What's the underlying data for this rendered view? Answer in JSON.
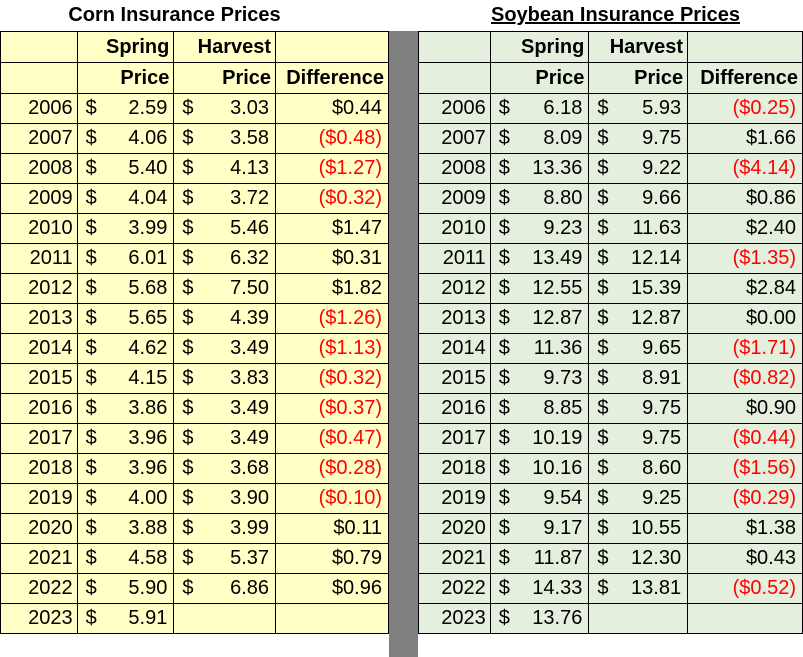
{
  "corn": {
    "title": "Corn Insurance Prices",
    "headers": {
      "spring_line1": "Spring",
      "spring_line2": "Price",
      "harvest_line1": "Harvest",
      "harvest_line2": "Price",
      "difference": "Difference"
    },
    "currency_symbol": "$",
    "rows": [
      {
        "year": "2006",
        "spring": "2.59",
        "harvest": "3.03",
        "difference": "$0.44",
        "negative": false
      },
      {
        "year": "2007",
        "spring": "4.06",
        "harvest": "3.58",
        "difference": "($0.48)",
        "negative": true
      },
      {
        "year": "2008",
        "spring": "5.40",
        "harvest": "4.13",
        "difference": "($1.27)",
        "negative": true
      },
      {
        "year": "2009",
        "spring": "4.04",
        "harvest": "3.72",
        "difference": "($0.32)",
        "negative": true
      },
      {
        "year": "2010",
        "spring": "3.99",
        "harvest": "5.46",
        "difference": "$1.47",
        "negative": false
      },
      {
        "year": "2011",
        "spring": "6.01",
        "harvest": "6.32",
        "difference": "$0.31",
        "negative": false
      },
      {
        "year": "2012",
        "spring": "5.68",
        "harvest": "7.50",
        "difference": "$1.82",
        "negative": false
      },
      {
        "year": "2013",
        "spring": "5.65",
        "harvest": "4.39",
        "difference": "($1.26)",
        "negative": true
      },
      {
        "year": "2014",
        "spring": "4.62",
        "harvest": "3.49",
        "difference": "($1.13)",
        "negative": true
      },
      {
        "year": "2015",
        "spring": "4.15",
        "harvest": "3.83",
        "difference": "($0.32)",
        "negative": true
      },
      {
        "year": "2016",
        "spring": "3.86",
        "harvest": "3.49",
        "difference": "($0.37)",
        "negative": true
      },
      {
        "year": "2017",
        "spring": "3.96",
        "harvest": "3.49",
        "difference": "($0.47)",
        "negative": true
      },
      {
        "year": "2018",
        "spring": "3.96",
        "harvest": "3.68",
        "difference": "($0.28)",
        "negative": true
      },
      {
        "year": "2019",
        "spring": "4.00",
        "harvest": "3.90",
        "difference": "($0.10)",
        "negative": true
      },
      {
        "year": "2020",
        "spring": "3.88",
        "harvest": "3.99",
        "difference": "$0.11",
        "negative": false
      },
      {
        "year": "2021",
        "spring": "4.58",
        "harvest": "5.37",
        "difference": "$0.79",
        "negative": false
      },
      {
        "year": "2022",
        "spring": "5.90",
        "harvest": "6.86",
        "difference": "$0.96",
        "negative": false
      },
      {
        "year": "2023",
        "spring": "5.91",
        "harvest": "",
        "difference": "",
        "negative": false
      }
    ]
  },
  "soybean": {
    "title": "Soybean Insurance Prices",
    "headers": {
      "spring_line1": "Spring",
      "spring_line2": "Price",
      "harvest_line1": "Harvest",
      "harvest_line2": "Price",
      "difference": "Difference"
    },
    "currency_symbol": "$",
    "rows": [
      {
        "year": "2006",
        "spring": "6.18",
        "harvest": "5.93",
        "difference": "($0.25)",
        "negative": true
      },
      {
        "year": "2007",
        "spring": "8.09",
        "harvest": "9.75",
        "difference": "$1.66",
        "negative": false
      },
      {
        "year": "2008",
        "spring": "13.36",
        "harvest": "9.22",
        "difference": "($4.14)",
        "negative": true
      },
      {
        "year": "2009",
        "spring": "8.80",
        "harvest": "9.66",
        "difference": "$0.86",
        "negative": false
      },
      {
        "year": "2010",
        "spring": "9.23",
        "harvest": "11.63",
        "difference": "$2.40",
        "negative": false
      },
      {
        "year": "2011",
        "spring": "13.49",
        "harvest": "12.14",
        "difference": "($1.35)",
        "negative": true
      },
      {
        "year": "2012",
        "spring": "12.55",
        "harvest": "15.39",
        "difference": "$2.84",
        "negative": false
      },
      {
        "year": "2013",
        "spring": "12.87",
        "harvest": "12.87",
        "difference": "$0.00",
        "negative": false
      },
      {
        "year": "2014",
        "spring": "11.36",
        "harvest": "9.65",
        "difference": "($1.71)",
        "negative": true
      },
      {
        "year": "2015",
        "spring": "9.73",
        "harvest": "8.91",
        "difference": "($0.82)",
        "negative": true
      },
      {
        "year": "2016",
        "spring": "8.85",
        "harvest": "9.75",
        "difference": "$0.90",
        "negative": false
      },
      {
        "year": "2017",
        "spring": "10.19",
        "harvest": "9.75",
        "difference": "($0.44)",
        "negative": true
      },
      {
        "year": "2018",
        "spring": "10.16",
        "harvest": "8.60",
        "difference": "($1.56)",
        "negative": true
      },
      {
        "year": "2019",
        "spring": "9.54",
        "harvest": "9.25",
        "difference": "($0.29)",
        "negative": true
      },
      {
        "year": "2020",
        "spring": "9.17",
        "harvest": "10.55",
        "difference": "$1.38",
        "negative": false
      },
      {
        "year": "2021",
        "spring": "11.87",
        "harvest": "12.30",
        "difference": "$0.43",
        "negative": false
      },
      {
        "year": "2022",
        "spring": "14.33",
        "harvest": "13.81",
        "difference": "($0.52)",
        "negative": true
      },
      {
        "year": "2023",
        "spring": "13.76",
        "harvest": "",
        "difference": "",
        "negative": false
      }
    ]
  },
  "colors": {
    "corn_fill": "#ffffc6",
    "soybean_fill": "#e4f0dd",
    "divider": "#7f7f7f",
    "negative_text": "#ff0000"
  }
}
